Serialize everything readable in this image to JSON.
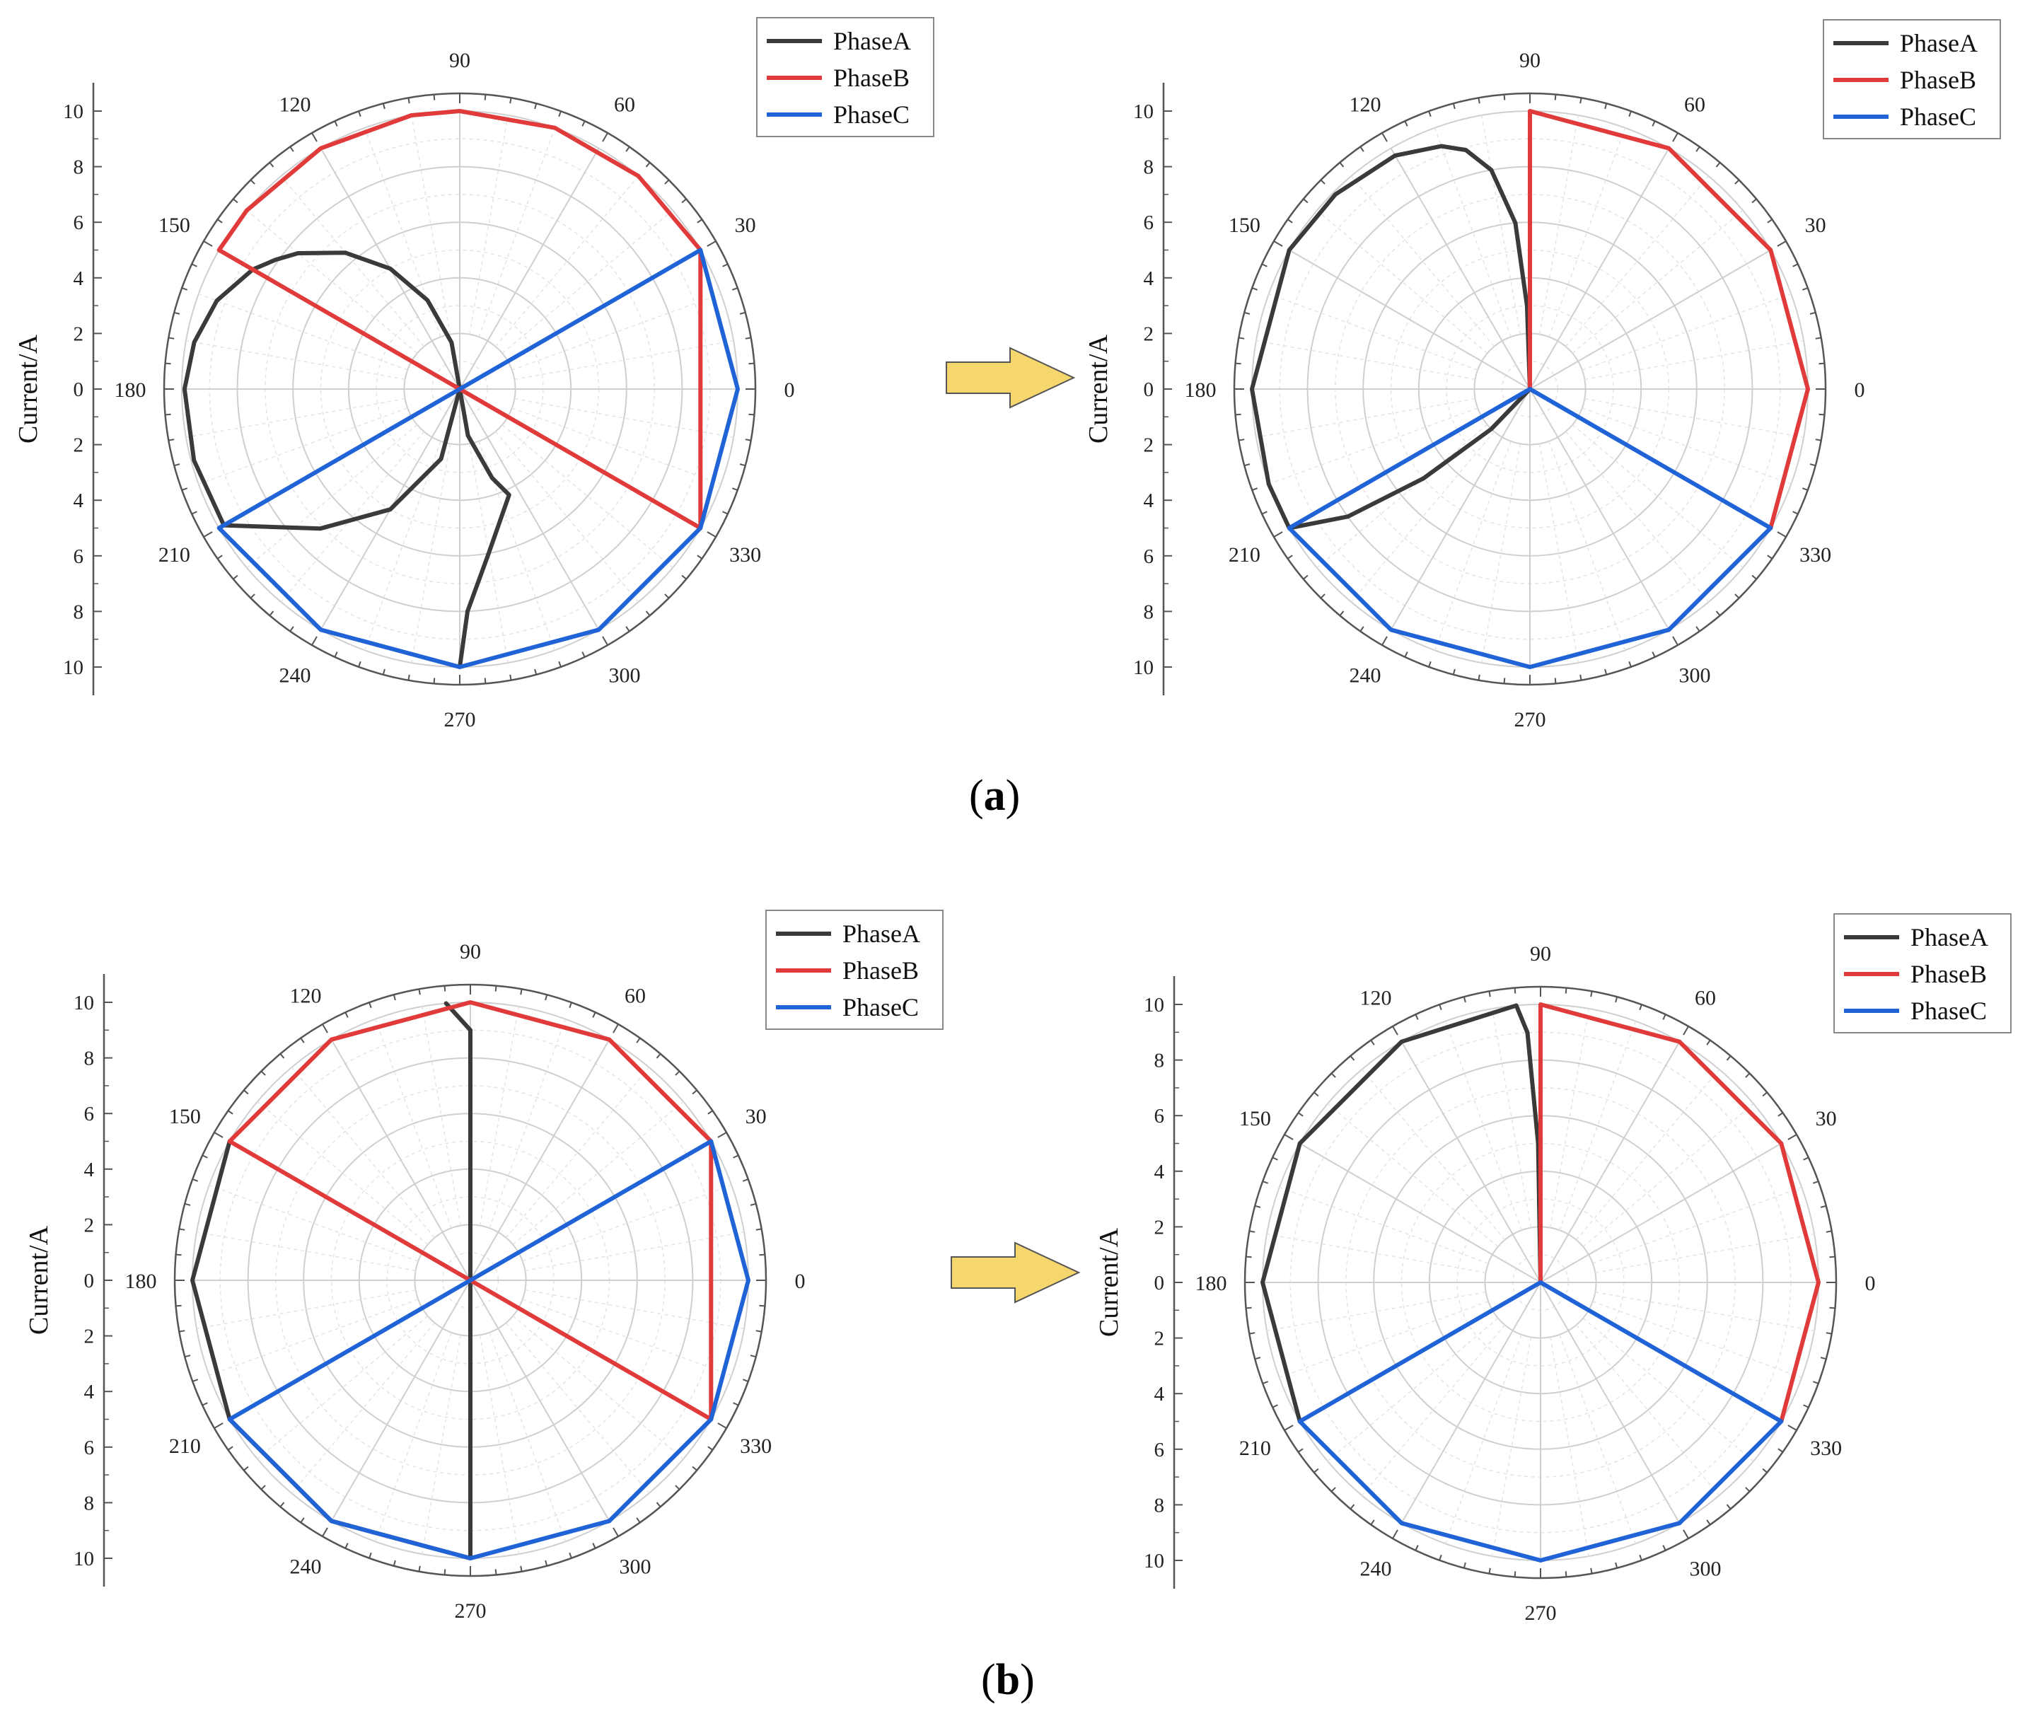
{
  "figure": {
    "captions": [
      {
        "open": "(",
        "letter": "a",
        "close": ")"
      },
      {
        "open": "(",
        "letter": "b",
        "close": ")"
      }
    ],
    "arrow_color": "#f5d76e",
    "arrow_stroke": "#555555"
  },
  "chart_data": [
    {
      "type": "polar-line",
      "ylabel": "Current/A",
      "radial_ticks": [
        "10",
        "8",
        "6",
        "4",
        "2",
        "0",
        "2",
        "4",
        "6",
        "8",
        "10"
      ],
      "rlim": [
        0,
        10
      ],
      "angle_ticks": [
        "0",
        "30",
        "60",
        "90",
        "120",
        "150",
        "180",
        "210",
        "240",
        "270",
        "300",
        "330"
      ],
      "grid": true,
      "legend": "top-right",
      "series": [
        {
          "name": "PhaseA",
          "color": "#3a3a3a",
          "points": [
            [
              90,
              0
            ],
            [
              100,
              1.7
            ],
            [
              110,
              3.4
            ],
            [
              120,
              5
            ],
            [
              130,
              6.4
            ],
            [
              140,
              7.6
            ],
            [
              145,
              8.1
            ],
            [
              150,
              8.6
            ],
            [
              160,
              9.3
            ],
            [
              170,
              9.7
            ],
            [
              180,
              9.9
            ],
            [
              195,
              9.9
            ],
            [
              210,
              9.8
            ],
            [
              225,
              7.1
            ],
            [
              240,
              5
            ],
            [
              255,
              2.6
            ],
            [
              270,
              0
            ],
            [
              280,
              1.7
            ],
            [
              290,
              3.4
            ],
            [
              295,
              4.2
            ],
            [
              280,
              6
            ],
            [
              272,
              8
            ],
            [
              270,
              10
            ]
          ]
        },
        {
          "name": "PhaseB",
          "color": "#e03a3a",
          "points": [
            [
              150,
              10
            ],
            [
              140,
              10
            ],
            [
              120,
              10
            ],
            [
              100,
              10
            ],
            [
              90,
              10
            ],
            [
              70,
              10
            ],
            [
              50,
              10
            ],
            [
              30,
              10
            ],
            [
              330,
              10
            ],
            [
              300,
              0
            ],
            [
              150,
              0
            ],
            [
              150,
              10
            ]
          ]
        },
        {
          "name": "PhaseC",
          "color": "#1f63d6",
          "points": [
            [
              210,
              0
            ],
            [
              210,
              10
            ],
            [
              240,
              10
            ],
            [
              270,
              10
            ],
            [
              300,
              10
            ],
            [
              330,
              10
            ],
            [
              0,
              10
            ],
            [
              30,
              10
            ],
            [
              30,
              0
            ]
          ]
        }
      ]
    },
    {
      "type": "polar-line",
      "ylabel": "Current/A",
      "radial_ticks": [
        "10",
        "8",
        "6",
        "4",
        "2",
        "0",
        "2",
        "4",
        "6",
        "8",
        "10"
      ],
      "rlim": [
        0,
        10
      ],
      "angle_ticks": [
        "0",
        "30",
        "60",
        "90",
        "120",
        "150",
        "180",
        "210",
        "240",
        "270",
        "300",
        "330"
      ],
      "grid": true,
      "legend": "top-right",
      "series": [
        {
          "name": "PhaseA",
          "color": "#3a3a3a",
          "points": [
            [
              90,
              0
            ],
            [
              92,
              3
            ],
            [
              95,
              6
            ],
            [
              100,
              8
            ],
            [
              105,
              8.9
            ],
            [
              110,
              9.3
            ],
            [
              120,
              9.7
            ],
            [
              135,
              9.9
            ],
            [
              150,
              10
            ],
            [
              180,
              10
            ],
            [
              200,
              10
            ],
            [
              210,
              10
            ],
            [
              215,
              8
            ],
            [
              220,
              5
            ],
            [
              226,
              2
            ],
            [
              240,
              0
            ]
          ]
        },
        {
          "name": "PhaseB",
          "color": "#e03a3a",
          "points": [
            [
              90,
              0
            ],
            [
              90,
              10
            ],
            [
              60,
              10
            ],
            [
              30,
              10
            ],
            [
              0,
              10
            ],
            [
              330,
              10
            ]
          ]
        },
        {
          "name": "PhaseC",
          "color": "#1f63d6",
          "points": [
            [
              210,
              10
            ],
            [
              210,
              0
            ],
            [
              330,
              10
            ],
            [
              300,
              10
            ],
            [
              270,
              10
            ],
            [
              240,
              10
            ],
            [
              210,
              10
            ]
          ]
        }
      ]
    },
    {
      "type": "polar-line",
      "ylabel": "Current/A",
      "radial_ticks": [
        "10",
        "8",
        "6",
        "4",
        "2",
        "0",
        "2",
        "4",
        "6",
        "8",
        "10"
      ],
      "rlim": [
        0,
        10
      ],
      "angle_ticks": [
        "0",
        "30",
        "60",
        "90",
        "120",
        "150",
        "180",
        "210",
        "240",
        "270",
        "300",
        "330"
      ],
      "grid": true,
      "legend": "top-right",
      "series": [
        {
          "name": "PhaseA",
          "color": "#3a3a3a",
          "points": [
            [
              95,
              10
            ],
            [
              90,
              9
            ],
            [
              90,
              0
            ],
            [
              270,
              0
            ],
            [
              270,
              10
            ],
            [
              240,
              10
            ],
            [
              210,
              10
            ],
            [
              180,
              10
            ],
            [
              150,
              10
            ]
          ]
        },
        {
          "name": "PhaseB",
          "color": "#e03a3a",
          "points": [
            [
              150,
              10
            ],
            [
              120,
              10
            ],
            [
              90,
              10
            ],
            [
              60,
              10
            ],
            [
              30,
              10
            ],
            [
              330,
              10
            ],
            [
              150,
              10
            ]
          ]
        },
        {
          "name": "PhaseC",
          "color": "#1f63d6",
          "points": [
            [
              210,
              10
            ],
            [
              30,
              10
            ],
            [
              0,
              10
            ],
            [
              330,
              10
            ],
            [
              300,
              10
            ],
            [
              270,
              10
            ],
            [
              240,
              10
            ],
            [
              210,
              10
            ]
          ]
        }
      ]
    },
    {
      "type": "polar-line",
      "ylabel": "Current/A",
      "radial_ticks": [
        "10",
        "8",
        "6",
        "4",
        "2",
        "0",
        "2",
        "4",
        "6",
        "8",
        "10"
      ],
      "rlim": [
        0,
        10
      ],
      "angle_ticks": [
        "0",
        "30",
        "60",
        "90",
        "120",
        "150",
        "180",
        "210",
        "240",
        "270",
        "300",
        "330"
      ],
      "grid": true,
      "legend": "top-right",
      "series": [
        {
          "name": "PhaseA",
          "color": "#3a3a3a",
          "points": [
            [
              90,
              0
            ],
            [
              91,
              5
            ],
            [
              93,
              9
            ],
            [
              95,
              10
            ],
            [
              120,
              10
            ],
            [
              150,
              10
            ],
            [
              180,
              10
            ],
            [
              210,
              10
            ]
          ]
        },
        {
          "name": "PhaseB",
          "color": "#e03a3a",
          "points": [
            [
              90,
              0
            ],
            [
              90,
              10
            ],
            [
              60,
              10
            ],
            [
              30,
              10
            ],
            [
              0,
              10
            ],
            [
              330,
              10
            ]
          ]
        },
        {
          "name": "PhaseC",
          "color": "#1f63d6",
          "points": [
            [
              210,
              10
            ],
            [
              210,
              0
            ],
            [
              330,
              10
            ],
            [
              300,
              10
            ],
            [
              270,
              10
            ],
            [
              240,
              10
            ],
            [
              210,
              10
            ]
          ]
        }
      ]
    }
  ]
}
